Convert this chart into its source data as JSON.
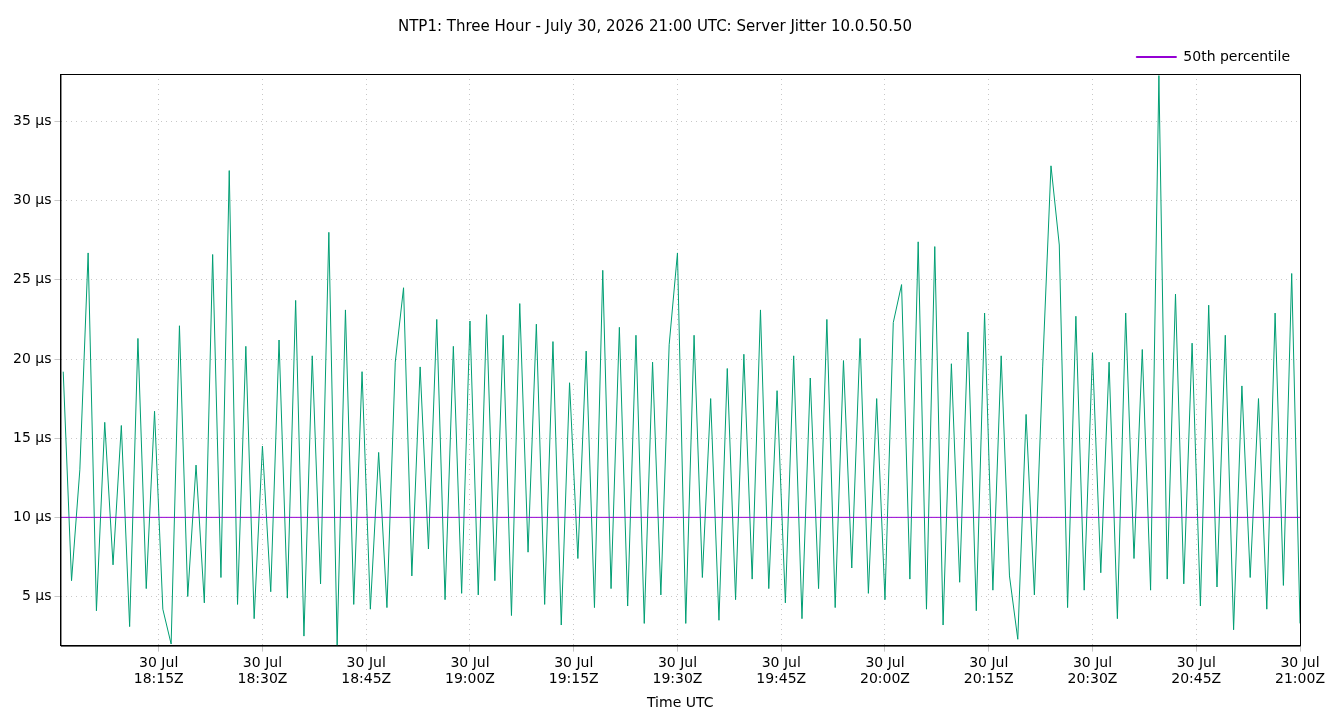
{
  "chart_data": {
    "type": "line",
    "title": "NTP1: Three Hour - July 30, 2026 21:00 UTC: Server Jitter 10.0.50.50",
    "xlabel": "Time UTC",
    "xlim": [
      "2026-07-30T18:00:48",
      "2026-07-30T21:00"
    ],
    "xticks": [
      {
        "value": "2026-07-30T18:15",
        "label": "30 Jul\n18:15Z"
      },
      {
        "value": "2026-07-30T18:30",
        "label": "30 Jul\n18:30Z"
      },
      {
        "value": "2026-07-30T18:45",
        "label": "30 Jul\n18:45Z"
      },
      {
        "value": "2026-07-30T19:00",
        "label": "30 Jul\n19:00Z"
      },
      {
        "value": "2026-07-30T19:15",
        "label": "30 Jul\n19:15Z"
      },
      {
        "value": "2026-07-30T19:30",
        "label": "30 Jul\n19:30Z"
      },
      {
        "value": "2026-07-30T19:45",
        "label": "30 Jul\n19:45Z"
      },
      {
        "value": "2026-07-30T20:00",
        "label": "30 Jul\n20:00Z"
      },
      {
        "value": "2026-07-30T20:15",
        "label": "30 Jul\n20:15Z"
      },
      {
        "value": "2026-07-30T20:30",
        "label": "30 Jul\n20:30Z"
      },
      {
        "value": "2026-07-30T20:45",
        "label": "30 Jul\n20:45Z"
      },
      {
        "value": "2026-07-30T21:00",
        "label": "30 Jul\n21:00Z"
      }
    ],
    "ylim": [
      1.9,
      38
    ],
    "yticks": [
      {
        "value": 5,
        "label": "5 µs"
      },
      {
        "value": 10,
        "label": "10 µs"
      },
      {
        "value": 15,
        "label": "15 µs"
      },
      {
        "value": 20,
        "label": "20 µs"
      },
      {
        "value": 25,
        "label": "25 µs"
      },
      {
        "value": 30,
        "label": "30 µs"
      },
      {
        "value": 35,
        "label": "35 µs"
      }
    ],
    "grid": true,
    "legend": "top right",
    "marker": "none",
    "line_style": "solid",
    "series": [
      {
        "name": "50th percentile",
        "color": "#9400d3",
        "x": [
          "2026-07-30T18:00:48",
          "2026-07-30T21:00"
        ],
        "values": [
          10,
          10
        ]
      },
      {
        "color": "#009e73",
        "x": [
          "2026-07-30T18:01:12",
          "2026-07-30T18:02:24",
          "2026-07-30T18:03:36",
          "2026-07-30T18:04:48",
          "2026-07-30T18:06:00",
          "2026-07-30T18:07:12",
          "2026-07-30T18:08:24",
          "2026-07-30T18:09:36",
          "2026-07-30T18:10:48",
          "2026-07-30T18:12:00",
          "2026-07-30T18:13:12",
          "2026-07-30T18:14:24",
          "2026-07-30T18:15:36",
          "2026-07-30T18:16:48",
          "2026-07-30T18:18:00",
          "2026-07-30T18:19:12",
          "2026-07-30T18:20:24",
          "2026-07-30T18:21:36",
          "2026-07-30T18:22:48",
          "2026-07-30T18:24:00",
          "2026-07-30T18:25:12",
          "2026-07-30T18:26:24",
          "2026-07-30T18:27:36",
          "2026-07-30T18:28:48",
          "2026-07-30T18:30:00",
          "2026-07-30T18:31:12",
          "2026-07-30T18:32:24",
          "2026-07-30T18:33:36",
          "2026-07-30T18:34:48",
          "2026-07-30T18:36:00",
          "2026-07-30T18:37:12",
          "2026-07-30T18:38:24",
          "2026-07-30T18:39:36",
          "2026-07-30T18:40:48",
          "2026-07-30T18:42:00",
          "2026-07-30T18:43:12",
          "2026-07-30T18:44:24",
          "2026-07-30T18:45:36",
          "2026-07-30T18:46:48",
          "2026-07-30T18:48:00",
          "2026-07-30T18:49:12",
          "2026-07-30T18:50:24",
          "2026-07-30T18:51:36",
          "2026-07-30T18:52:48",
          "2026-07-30T18:54:00",
          "2026-07-30T18:55:12",
          "2026-07-30T18:56:24",
          "2026-07-30T18:57:36",
          "2026-07-30T18:58:48",
          "2026-07-30T19:00:00",
          "2026-07-30T19:01:12",
          "2026-07-30T19:02:24",
          "2026-07-30T19:03:36",
          "2026-07-30T19:04:48",
          "2026-07-30T19:06:00",
          "2026-07-30T19:07:12",
          "2026-07-30T19:08:24",
          "2026-07-30T19:09:36",
          "2026-07-30T19:10:48",
          "2026-07-30T19:12:00",
          "2026-07-30T19:13:12",
          "2026-07-30T19:14:24",
          "2026-07-30T19:15:36",
          "2026-07-30T19:16:48",
          "2026-07-30T19:18:00",
          "2026-07-30T19:19:12",
          "2026-07-30T19:20:24",
          "2026-07-30T19:21:36",
          "2026-07-30T19:22:48",
          "2026-07-30T19:24:00",
          "2026-07-30T19:25:12",
          "2026-07-30T19:26:24",
          "2026-07-30T19:27:36",
          "2026-07-30T19:28:48",
          "2026-07-30T19:30:00",
          "2026-07-30T19:31:12",
          "2026-07-30T19:32:24",
          "2026-07-30T19:33:36",
          "2026-07-30T19:34:48",
          "2026-07-30T19:36:00",
          "2026-07-30T19:37:12",
          "2026-07-30T19:38:24",
          "2026-07-30T19:39:36",
          "2026-07-30T19:40:48",
          "2026-07-30T19:42:00",
          "2026-07-30T19:43:12",
          "2026-07-30T19:44:24",
          "2026-07-30T19:45:36",
          "2026-07-30T19:46:48",
          "2026-07-30T19:48:00",
          "2026-07-30T19:49:12",
          "2026-07-30T19:50:24",
          "2026-07-30T19:51:36",
          "2026-07-30T19:52:48",
          "2026-07-30T19:54:00",
          "2026-07-30T19:55:12",
          "2026-07-30T19:56:24",
          "2026-07-30T19:57:36",
          "2026-07-30T19:58:48",
          "2026-07-30T20:00:00",
          "2026-07-30T20:01:12",
          "2026-07-30T20:02:24",
          "2026-07-30T20:03:36",
          "2026-07-30T20:04:48",
          "2026-07-30T20:06:00",
          "2026-07-30T20:07:12",
          "2026-07-30T20:08:24",
          "2026-07-30T20:09:36",
          "2026-07-30T20:10:48",
          "2026-07-30T20:12:00",
          "2026-07-30T20:13:12",
          "2026-07-30T20:14:24",
          "2026-07-30T20:15:36",
          "2026-07-30T20:16:48",
          "2026-07-30T20:18:00",
          "2026-07-30T20:19:12",
          "2026-07-30T20:20:24",
          "2026-07-30T20:21:36",
          "2026-07-30T20:22:48",
          "2026-07-30T20:24:00",
          "2026-07-30T20:25:12",
          "2026-07-30T20:26:24",
          "2026-07-30T20:27:36",
          "2026-07-30T20:28:48",
          "2026-07-30T20:30:00",
          "2026-07-30T20:31:12",
          "2026-07-30T20:32:24",
          "2026-07-30T20:33:36",
          "2026-07-30T20:34:48",
          "2026-07-30T20:36:00",
          "2026-07-30T20:37:12",
          "2026-07-30T20:38:24",
          "2026-07-30T20:39:36",
          "2026-07-30T20:40:48",
          "2026-07-30T20:42:00",
          "2026-07-30T20:43:12",
          "2026-07-30T20:44:24",
          "2026-07-30T20:45:36",
          "2026-07-30T20:46:48",
          "2026-07-30T20:48:00",
          "2026-07-30T20:49:12",
          "2026-07-30T20:50:24",
          "2026-07-30T20:51:36",
          "2026-07-30T20:52:48",
          "2026-07-30T20:54:00",
          "2026-07-30T20:55:12",
          "2026-07-30T20:56:24",
          "2026-07-30T20:57:36",
          "2026-07-30T20:58:48",
          "2026-07-30T21:00:00"
        ],
        "values": [
          19.2,
          6,
          13,
          26.7,
          4.1,
          16,
          7,
          15.8,
          3.1,
          21.3,
          5.5,
          16.7,
          4.2,
          2.0,
          22.1,
          5,
          13.3,
          4.6,
          26.6,
          6.2,
          31.9,
          4.5,
          20.8,
          3.6,
          14.5,
          5.3,
          21.2,
          4.9,
          23.7,
          2.5,
          20.2,
          5.8,
          28,
          1.9,
          23.1,
          4.5,
          19.2,
          4.2,
          14.1,
          4.3,
          19.8,
          24.5,
          6.3,
          19.5,
          8,
          22.5,
          4.8,
          20.8,
          5.2,
          22.4,
          5.1,
          22.8,
          6,
          21.5,
          3.8,
          23.5,
          7.8,
          22.2,
          4.5,
          21.1,
          3.2,
          18.5,
          7.4,
          20.5,
          4.3,
          25.6,
          5.5,
          22,
          4.4,
          21.5,
          3.3,
          19.8,
          5.1,
          20.9,
          26.7,
          3.3,
          21.5,
          6.2,
          17.5,
          3.5,
          19.4,
          4.8,
          20.3,
          6.1,
          23.1,
          5.5,
          18,
          4.6,
          20.2,
          3.6,
          18.8,
          5.5,
          22.5,
          4.3,
          19.9,
          6.8,
          21.3,
          5.2,
          17.5,
          4.8,
          22.3,
          24.7,
          6.1,
          27.4,
          4.2,
          27.1,
          3.2,
          19.7,
          5.9,
          21.7,
          4.1,
          22.9,
          5.4,
          20.2,
          6.3,
          2.3,
          16.5,
          5.1,
          19.5,
          32.2,
          27.2,
          4.3,
          22.7,
          5.4,
          20.4,
          6.5,
          19.8,
          3.6,
          22.9,
          7.4,
          20.6,
          5.4,
          37.9,
          6.1,
          24.1,
          5.8,
          21,
          4.4,
          23.4,
          5.6,
          21.5,
          2.9,
          18.3,
          6.2,
          17.5,
          4.2,
          22.9,
          5.7,
          25.4,
          3.3
        ]
      }
    ]
  }
}
